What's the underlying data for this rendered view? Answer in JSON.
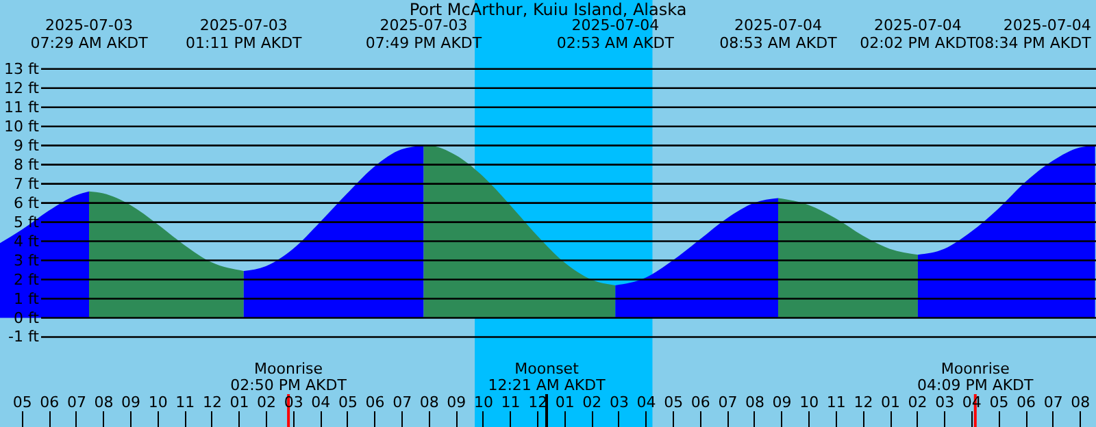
{
  "chart_data": {
    "type": "area",
    "title": "Port McArthur, Kuiu Island, Alaska",
    "xlim": [
      "2025-07-03T04:12",
      "2025-07-04T20:36"
    ],
    "ylim": [
      -5.7,
      16.6
    ],
    "xticks": [
      {
        "value": "2025-07-03T05:00",
        "label": "05"
      },
      {
        "value": "2025-07-03T06:00",
        "label": "06"
      },
      {
        "value": "2025-07-03T07:00",
        "label": "07"
      },
      {
        "value": "2025-07-03T08:00",
        "label": "08"
      },
      {
        "value": "2025-07-03T09:00",
        "label": "09"
      },
      {
        "value": "2025-07-03T10:00",
        "label": "10"
      },
      {
        "value": "2025-07-03T11:00",
        "label": "11"
      },
      {
        "value": "2025-07-03T12:00",
        "label": "12"
      },
      {
        "value": "2025-07-03T13:00",
        "label": "01"
      },
      {
        "value": "2025-07-03T14:00",
        "label": "02"
      },
      {
        "value": "2025-07-03T15:00",
        "label": "03"
      },
      {
        "value": "2025-07-03T16:00",
        "label": "04"
      },
      {
        "value": "2025-07-03T17:00",
        "label": "05"
      },
      {
        "value": "2025-07-03T18:00",
        "label": "06"
      },
      {
        "value": "2025-07-03T19:00",
        "label": "07"
      },
      {
        "value": "2025-07-03T20:00",
        "label": "08"
      },
      {
        "value": "2025-07-03T21:00",
        "label": "09"
      },
      {
        "value": "2025-07-03T22:00",
        "label": "10"
      },
      {
        "value": "2025-07-03T23:00",
        "label": "11"
      },
      {
        "value": "2025-07-04T00:00",
        "label": "12"
      },
      {
        "value": "2025-07-04T01:00",
        "label": "01"
      },
      {
        "value": "2025-07-04T02:00",
        "label": "02"
      },
      {
        "value": "2025-07-04T03:00",
        "label": "03"
      },
      {
        "value": "2025-07-04T04:00",
        "label": "04"
      },
      {
        "value": "2025-07-04T05:00",
        "label": "05"
      },
      {
        "value": "2025-07-04T06:00",
        "label": "06"
      },
      {
        "value": "2025-07-04T07:00",
        "label": "07"
      },
      {
        "value": "2025-07-04T08:00",
        "label": "08"
      },
      {
        "value": "2025-07-04T09:00",
        "label": "09"
      },
      {
        "value": "2025-07-04T10:00",
        "label": "10"
      },
      {
        "value": "2025-07-04T11:00",
        "label": "11"
      },
      {
        "value": "2025-07-04T12:00",
        "label": "12"
      },
      {
        "value": "2025-07-04T13:00",
        "label": "01"
      },
      {
        "value": "2025-07-04T14:00",
        "label": "02"
      },
      {
        "value": "2025-07-04T15:00",
        "label": "03"
      },
      {
        "value": "2025-07-04T16:00",
        "label": "04"
      },
      {
        "value": "2025-07-04T17:00",
        "label": "05"
      },
      {
        "value": "2025-07-04T18:00",
        "label": "06"
      },
      {
        "value": "2025-07-04T19:00",
        "label": "07"
      },
      {
        "value": "2025-07-04T20:00",
        "label": "08"
      }
    ],
    "x2lim": [
      "2025-07-03T04:12",
      "2025-07-04T20:36"
    ],
    "x2ticks": [
      {
        "value": "2025-07-03T07:29",
        "label": "2025-07-03\n07:29 AM AKDT"
      },
      {
        "value": "2025-07-03T13:11",
        "label": "2025-07-03\n01:11 PM AKDT"
      },
      {
        "value": "2025-07-03T19:49",
        "label": "2025-07-03\n07:49 PM AKDT"
      },
      {
        "value": "2025-07-04T02:53",
        "label": "2025-07-04\n02:53 AM AKDT"
      },
      {
        "value": "2025-07-04T08:53",
        "label": "2025-07-04\n08:53 AM AKDT"
      },
      {
        "value": "2025-07-04T14:02",
        "label": "2025-07-04\n02:02 PM AKDT"
      },
      {
        "value": "2025-07-04T20:34",
        "label": "2025-07-04\n08:34 PM AKDT"
      }
    ],
    "yticks": [
      {
        "value": 13,
        "label": "13 ft"
      },
      {
        "value": 12,
        "label": "12 ft"
      },
      {
        "value": 11,
        "label": "11 ft"
      },
      {
        "value": 10,
        "label": "10 ft"
      },
      {
        "value": 9,
        "label": "9 ft"
      },
      {
        "value": 8,
        "label": "8 ft"
      },
      {
        "value": 7,
        "label": "7 ft"
      },
      {
        "value": 6,
        "label": "6 ft"
      },
      {
        "value": 5,
        "label": "5 ft"
      },
      {
        "value": 4,
        "label": "4 ft"
      },
      {
        "value": 3,
        "label": "3 ft"
      },
      {
        "value": 2,
        "label": "2 ft"
      },
      {
        "value": 1,
        "label": "1 ft"
      },
      {
        "value": 0,
        "label": "0 ft"
      },
      {
        "value": -1,
        "label": "-1 ft"
      }
    ],
    "grid": "y",
    "series": [
      {
        "color": "#0000ff",
        "x": [
          "2025-07-03T04:12",
          "2025-07-03T05:00",
          "2025-07-03T06:00",
          "2025-07-03T07:00",
          "2025-07-03T07:29"
        ],
        "values": [
          3.9,
          4.6,
          5.6,
          6.4,
          6.6
        ]
      },
      {
        "color": "#2e8b57",
        "x": [
          "2025-07-03T07:29",
          "2025-07-03T08:00",
          "2025-07-03T09:00",
          "2025-07-03T10:00",
          "2025-07-03T11:00",
          "2025-07-03T12:00",
          "2025-07-03T13:11"
        ],
        "values": [
          6.6,
          6.5,
          5.9,
          4.9,
          3.8,
          2.9,
          2.45
        ]
      },
      {
        "color": "#0000ff",
        "x": [
          "2025-07-03T13:11",
          "2025-07-03T14:00",
          "2025-07-03T15:00",
          "2025-07-03T16:00",
          "2025-07-03T17:00",
          "2025-07-03T18:00",
          "2025-07-03T19:00",
          "2025-07-03T19:49"
        ],
        "values": [
          2.45,
          2.7,
          3.6,
          5.0,
          6.5,
          7.9,
          8.8,
          9.0
        ]
      },
      {
        "color": "#2e8b57",
        "x": [
          "2025-07-03T19:49",
          "2025-07-03T20:00",
          "2025-07-03T21:00",
          "2025-07-03T22:00",
          "2025-07-03T23:00",
          "2025-07-04T00:00",
          "2025-07-04T01:00",
          "2025-07-04T02:00",
          "2025-07-04T02:53"
        ],
        "values": [
          9.0,
          9.0,
          8.5,
          7.4,
          5.9,
          4.3,
          2.9,
          2.0,
          1.7
        ]
      },
      {
        "color": "#0000ff",
        "x": [
          "2025-07-04T02:53",
          "2025-07-04T04:00",
          "2025-07-04T05:00",
          "2025-07-04T06:00",
          "2025-07-04T07:00",
          "2025-07-04T08:00",
          "2025-07-04T08:53"
        ],
        "values": [
          1.7,
          2.1,
          3.0,
          4.1,
          5.2,
          6.0,
          6.25
        ]
      },
      {
        "color": "#2e8b57",
        "x": [
          "2025-07-04T08:53",
          "2025-07-04T10:00",
          "2025-07-04T11:00",
          "2025-07-04T12:00",
          "2025-07-04T13:00",
          "2025-07-04T14:02"
        ],
        "values": [
          6.25,
          5.9,
          5.2,
          4.3,
          3.6,
          3.3
        ]
      },
      {
        "color": "#0000ff",
        "x": [
          "2025-07-04T14:02",
          "2025-07-04T15:00",
          "2025-07-04T16:00",
          "2025-07-04T17:00",
          "2025-07-04T18:00",
          "2025-07-04T19:00",
          "2025-07-04T20:00",
          "2025-07-04T20:34"
        ],
        "values": [
          3.3,
          3.6,
          4.5,
          5.7,
          7.1,
          8.2,
          8.9,
          9.0
        ]
      }
    ],
    "bands": [
      {
        "axis": "x",
        "from": "2025-07-03T21:42",
        "to": "2025-07-04T04:15",
        "color": "#00bfff"
      }
    ],
    "ref_lines": [
      {
        "axis": "x",
        "value": "2025-07-03T14:50",
        "label": "Moonrise\n02:50 PM AKDT",
        "color": "#ff0000"
      },
      {
        "axis": "x",
        "value": "2025-07-04T00:21",
        "label": "Moonset\n12:21 AM AKDT",
        "color": "#000000"
      },
      {
        "axis": "x",
        "value": "2025-07-04T16:09",
        "label": "Moonrise\n04:09 PM AKDT",
        "color": "#ff0000"
      }
    ]
  }
}
